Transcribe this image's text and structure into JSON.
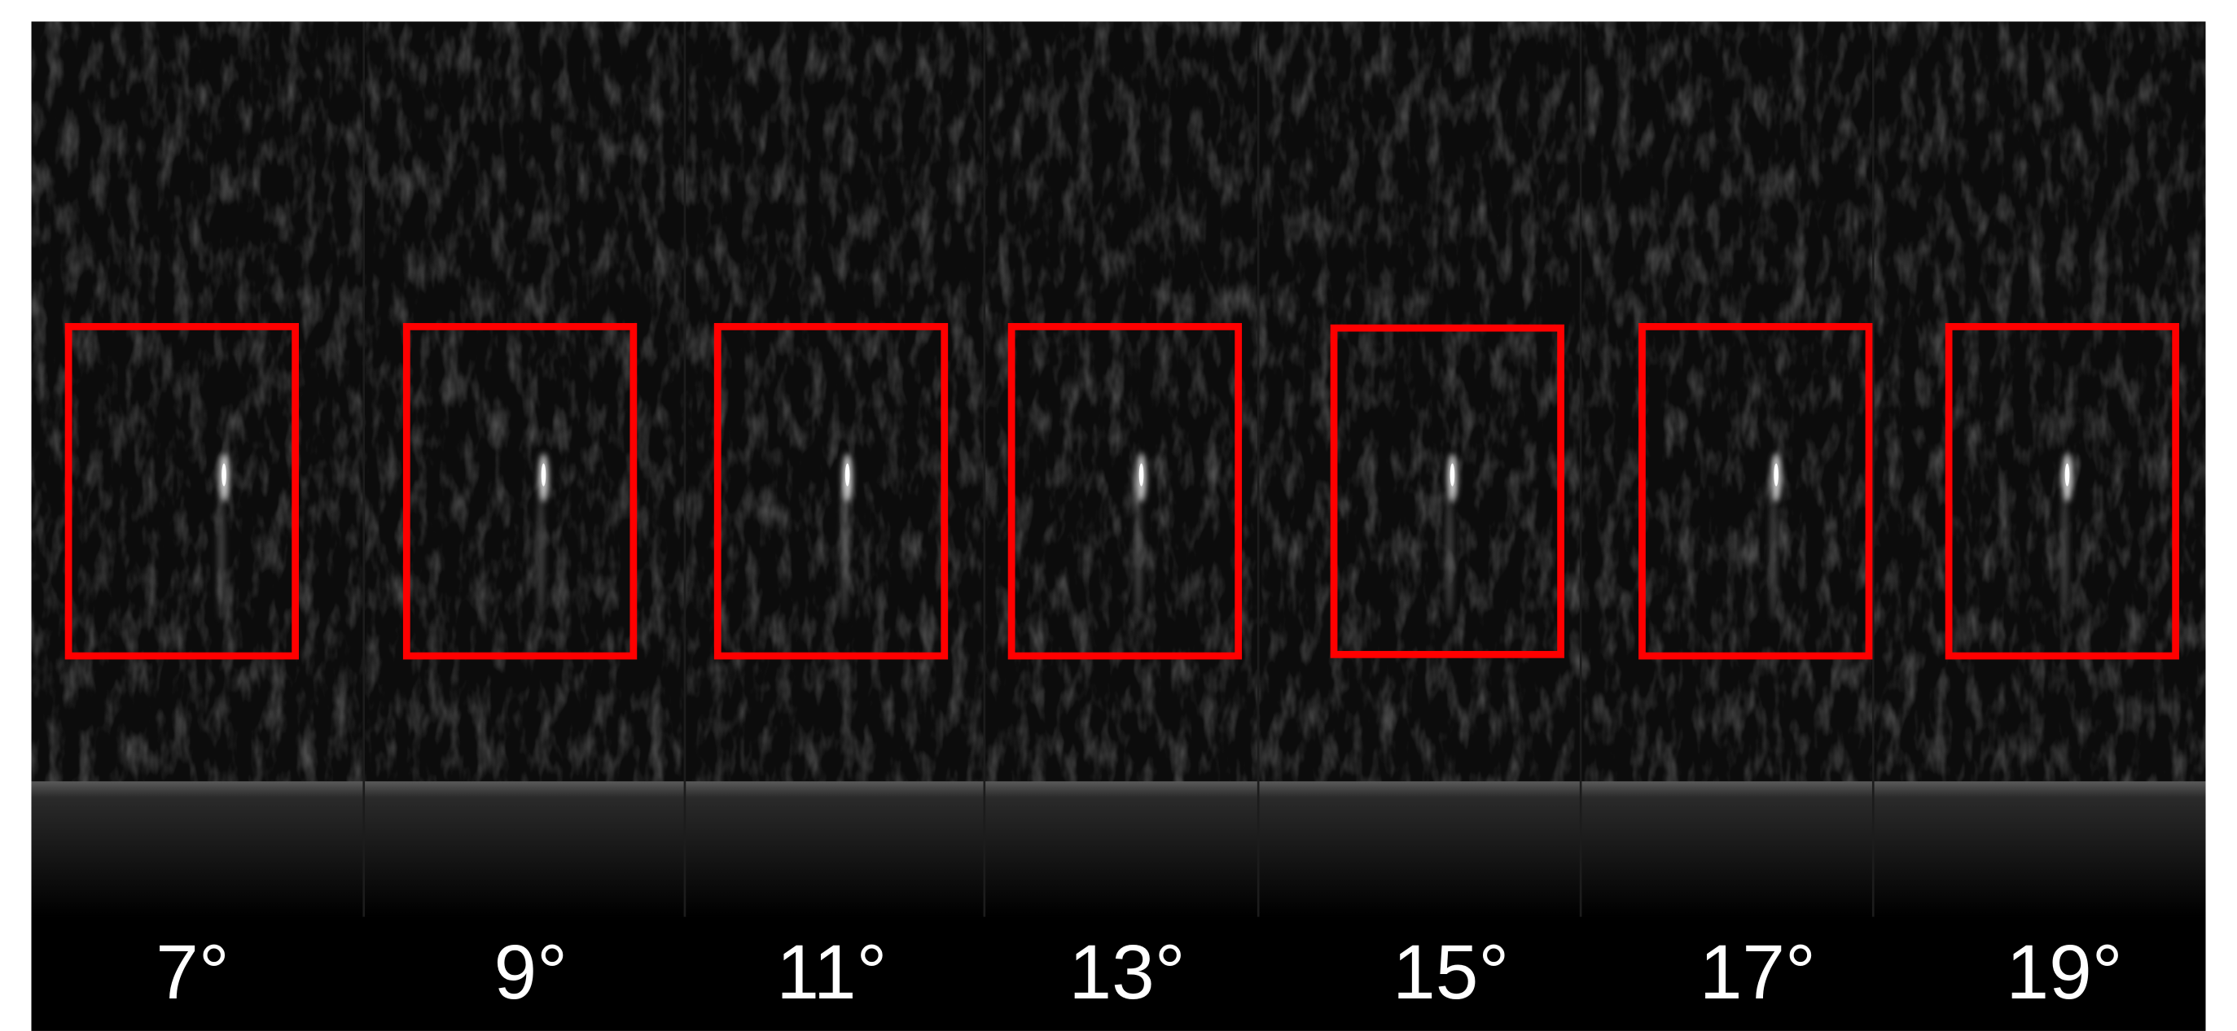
{
  "panels": [
    {
      "label": "7°"
    },
    {
      "label": "9°"
    },
    {
      "label": "11°"
    },
    {
      "label": "13°"
    },
    {
      "label": "15°"
    },
    {
      "label": "17°"
    },
    {
      "label": "19°"
    }
  ]
}
